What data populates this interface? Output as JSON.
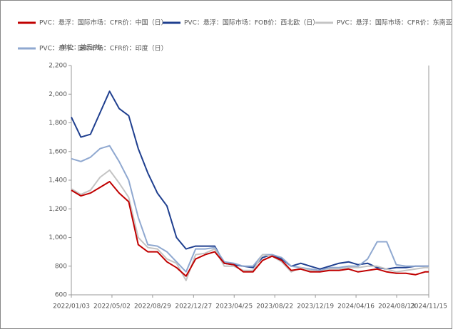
{
  "chart_data": {
    "type": "line",
    "y_unit": "单位：美元/吨",
    "x": [
      "2022/01/03",
      "2022/01/31",
      "2022/02/28",
      "2022/03/28",
      "2022/04/25",
      "2022/05/23",
      "2022/06/20",
      "2022/07/18",
      "2022/08/15",
      "2022/09/12",
      "2022/10/10",
      "2022/11/07",
      "2022/12/05",
      "2023/01/02",
      "2023/01/30",
      "2023/02/27",
      "2023/03/27",
      "2023/04/24",
      "2023/05/22",
      "2023/06/19",
      "2023/07/17",
      "2023/08/14",
      "2023/09/11",
      "2023/10/09",
      "2023/11/06",
      "2023/12/04",
      "2024/01/01",
      "2024/01/29",
      "2024/02/26",
      "2024/03/25",
      "2024/04/22",
      "2024/05/20",
      "2024/06/17",
      "2024/07/15",
      "2024/08/12",
      "2024/09/09",
      "2024/10/07",
      "2024/11/04",
      "2024/11/15"
    ],
    "series": [
      {
        "name": "PVC：悬浮：国际市场：CFR价：中国（日）",
        "color": "#c00000",
        "values": [
          1330,
          1290,
          1310,
          1350,
          1390,
          1310,
          1250,
          950,
          900,
          900,
          830,
          790,
          730,
          850,
          880,
          900,
          820,
          810,
          760,
          760,
          840,
          870,
          840,
          770,
          780,
          760,
          760,
          770,
          770,
          780,
          760,
          770,
          780,
          760,
          750,
          750,
          740,
          760,
          760
        ]
      },
      {
        "name": "PVC：悬浮：国际市场：FOB价：西北欧（日）",
        "color": "#1f3f8f",
        "values": [
          1840,
          1700,
          1720,
          1870,
          2020,
          1900,
          1850,
          1620,
          1450,
          1310,
          1220,
          1000,
          920,
          940,
          940,
          940,
          820,
          810,
          800,
          790,
          860,
          880,
          850,
          800,
          820,
          800,
          780,
          800,
          820,
          830,
          810,
          820,
          790,
          780,
          790,
          790,
          800,
          800,
          800
        ]
      },
      {
        "name": "PVC：悬浮：国际市场：CFR价：东南亚（日）",
        "color": "#c4c4c4",
        "values": [
          1340,
          1300,
          1330,
          1420,
          1470,
          1380,
          1280,
          1000,
          930,
          920,
          850,
          820,
          700,
          880,
          890,
          920,
          800,
          800,
          770,
          770,
          880,
          870,
          830,
          760,
          790,
          770,
          760,
          780,
          780,
          790,
          790,
          800,
          800,
          780,
          760,
          770,
          780,
          790,
          790
        ]
      },
      {
        "name": "PVC：悬浮：国际市场：CFR价：印度（日）",
        "color": "#8fa8d0",
        "values": [
          1550,
          1530,
          1560,
          1620,
          1640,
          1530,
          1400,
          1140,
          950,
          940,
          900,
          830,
          760,
          920,
          920,
          930,
          830,
          820,
          800,
          800,
          880,
          880,
          860,
          800,
          790,
          780,
          770,
          790,
          790,
          800,
          800,
          850,
          970,
          970,
          810,
          800,
          800,
          800,
          800
        ]
      }
    ],
    "xlim": [
      "2022/01/03",
      "2024/11/15"
    ],
    "xticks": [
      "2022/01/03",
      "2022/05/02",
      "2022/08/29",
      "2022/12/27",
      "2023/04/25",
      "2023/08/22",
      "2023/12/19",
      "2024/04/16",
      "2024/08/13",
      "2024/11/15"
    ],
    "ylim": [
      600,
      2200
    ],
    "yticks": [
      600,
      800,
      {
        "value": 1000,
        "label": "1,000"
      },
      {
        "value": 1200,
        "label": "1,200"
      },
      {
        "value": 1400,
        "label": "1,400"
      },
      {
        "value": 1600,
        "label": "1,600"
      },
      {
        "value": 1800,
        "label": "1,800"
      },
      {
        "value": 2000,
        "label": "2,000"
      },
      {
        "value": 2200,
        "label": "2,200"
      }
    ]
  }
}
